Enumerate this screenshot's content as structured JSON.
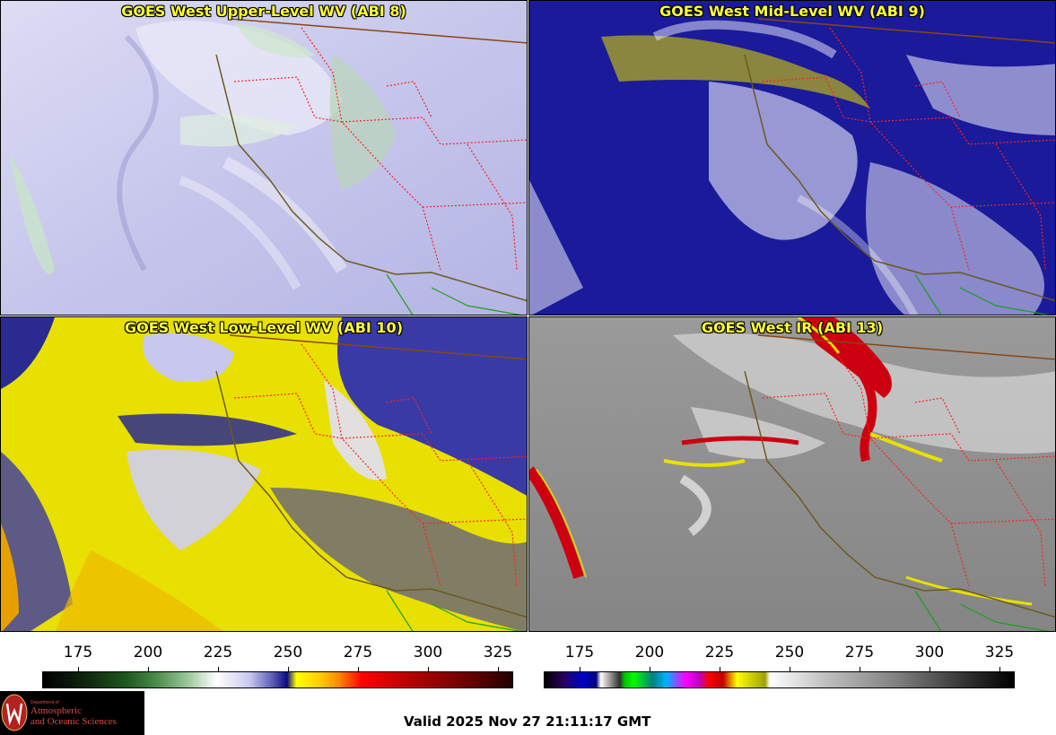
{
  "panels": [
    {
      "title": "GOES West Upper-Level WV (ABI 8)"
    },
    {
      "title": "GOES West Mid-Level WV (ABI 9)"
    },
    {
      "title": "GOES West Low-Level WV (ABI 10)"
    },
    {
      "title": "GOES West IR (ABI 13)"
    }
  ],
  "colorbars": [
    {
      "ticks": [
        "175",
        "200",
        "225",
        "250",
        "275",
        "300",
        "325"
      ]
    },
    {
      "ticks": [
        "175",
        "200",
        "225",
        "250",
        "275",
        "300",
        "325"
      ]
    }
  ],
  "logo": {
    "line1": "Department of",
    "line2": "Atmospheric",
    "line3": "and Oceanic Sciences"
  },
  "valid_time": "Valid 2025 Nov 27 21:11:17 GMT",
  "colors": {
    "title_text": "#ffff33",
    "state_border": "#ff2020",
    "coastline": "#6b5a1e",
    "mexico_border": "#1aa01a",
    "logo_text": "#e04848"
  }
}
